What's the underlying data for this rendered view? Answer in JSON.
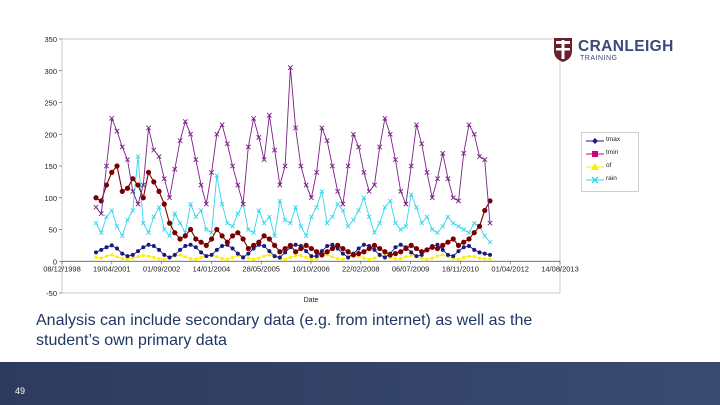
{
  "logo": {
    "name": "CRANLEIGH",
    "sub": "TRAINING"
  },
  "caption": {
    "line1": "Analysis can include secondary data (e.g. from internet) as well as the",
    "line2": "student’s own primary data"
  },
  "footer": {
    "page_number": "49"
  },
  "colors": {
    "tmax": "#7b1f86",
    "tmin": "#1a1a80",
    "of": "#ffee00",
    "rain": "#33d6ef",
    "extra": "#7a0000",
    "footer": "#2e3b5e",
    "caption": "#1f3763"
  },
  "chart_data": {
    "type": "line",
    "title": "",
    "xlabel": "Date",
    "ylabel": "",
    "ylim": [
      -50,
      350
    ],
    "yticks": [
      "-50",
      "0",
      "50",
      "100",
      "150",
      "200",
      "250",
      "300",
      "350"
    ],
    "xticks": [
      "08/12/1998",
      "19/04/2001",
      "01/09/2002",
      "14/01/2004",
      "28/05/2005",
      "10/10/2006",
      "22/02/2008",
      "06/07/2009",
      "18/11/2010",
      "01/04/2012",
      "14/08/2013"
    ],
    "legend_position": "right",
    "legend": [
      "tmax",
      "tmin",
      "of",
      "rain"
    ],
    "series": [
      {
        "name": "tmax",
        "values": [
          85,
          75,
          150,
          225,
          205,
          180,
          160,
          110,
          90,
          120,
          210,
          175,
          165,
          130,
          100,
          145,
          190,
          220,
          200,
          160,
          120,
          90,
          140,
          200,
          215,
          185,
          150,
          120,
          90,
          180,
          225,
          195,
          160,
          230,
          175,
          120,
          150,
          305,
          210,
          150,
          120,
          100,
          140,
          210,
          190,
          150,
          110,
          90,
          150,
          200,
          180,
          140,
          110,
          120,
          180,
          225,
          200,
          160,
          110,
          90,
          150,
          215,
          185,
          140,
          100,
          130,
          170,
          130,
          100,
          95,
          170,
          215,
          200,
          165,
          160,
          60
        ]
      },
      {
        "name": "tmin",
        "values": [
          14,
          18,
          22,
          25,
          20,
          12,
          8,
          10,
          16,
          22,
          26,
          24,
          18,
          10,
          6,
          10,
          18,
          24,
          26,
          22,
          14,
          8,
          10,
          18,
          24,
          26,
          20,
          12,
          6,
          12,
          20,
          26,
          24,
          16,
          8,
          6,
          14,
          22,
          26,
          24,
          16,
          8,
          8,
          16,
          24,
          26,
          20,
          12,
          6,
          12,
          20,
          26,
          24,
          18,
          10,
          6,
          12,
          22,
          26,
          22,
          14,
          8,
          10,
          18,
          24,
          26,
          18,
          10,
          8,
          16,
          22,
          24,
          18,
          14,
          12,
          10
        ]
      },
      {
        "name": "of",
        "values": [
          6,
          5,
          8,
          10,
          7,
          4,
          3,
          5,
          7,
          9,
          8,
          6,
          4,
          3,
          5,
          8,
          10,
          7,
          4,
          3,
          6,
          9,
          10,
          7,
          4,
          3,
          6,
          9,
          8,
          5,
          3,
          5,
          8,
          10,
          7,
          4,
          3,
          6,
          9,
          9,
          6,
          3,
          4,
          8,
          10,
          7,
          4,
          3,
          6,
          9,
          8,
          5,
          3,
          5,
          8,
          10,
          6,
          4,
          4,
          7,
          9,
          8,
          5,
          3,
          5,
          8,
          10,
          7,
          4,
          3,
          6,
          8,
          7,
          5,
          4,
          3
        ]
      },
      {
        "name": "rain",
        "values": [
          60,
          45,
          70,
          80,
          55,
          40,
          65,
          80,
          165,
          60,
          45,
          70,
          85,
          50,
          40,
          75,
          60,
          45,
          90,
          70,
          80,
          50,
          45,
          135,
          90,
          60,
          55,
          75,
          90,
          50,
          45,
          80,
          60,
          70,
          40,
          95,
          65,
          60,
          85,
          55,
          40,
          70,
          85,
          110,
          60,
          70,
          90,
          80,
          55,
          65,
          80,
          100,
          70,
          45,
          60,
          85,
          95,
          60,
          50,
          55,
          105,
          85,
          60,
          70,
          50,
          45,
          55,
          70,
          60,
          55,
          50,
          45,
          60,
          55,
          40,
          30
        ]
      },
      {
        "name": "",
        "values": [
          100,
          95,
          120,
          140,
          150,
          110,
          115,
          130,
          120,
          100,
          140,
          125,
          110,
          90,
          60,
          45,
          35,
          40,
          50,
          35,
          30,
          25,
          35,
          50,
          40,
          30,
          40,
          45,
          35,
          20,
          25,
          30,
          40,
          35,
          25,
          15,
          20,
          25,
          15,
          20,
          25,
          20,
          15,
          10,
          15,
          20,
          25,
          20,
          15,
          10,
          12,
          15,
          20,
          25,
          20,
          15,
          10,
          12,
          15,
          20,
          25,
          20,
          15,
          18,
          22,
          20,
          25,
          30,
          35,
          25,
          30,
          35,
          45,
          55,
          80,
          95
        ]
      }
    ]
  }
}
